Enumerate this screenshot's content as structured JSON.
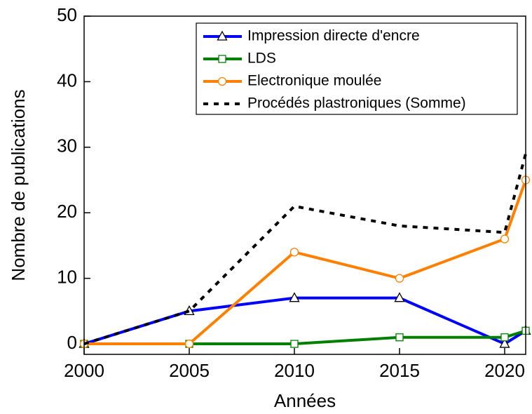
{
  "chart_data": {
    "type": "line",
    "x_label": "Années",
    "y_label": "Nombre de publications",
    "x": [
      2000,
      2005,
      2010,
      2015,
      2020,
      2021
    ],
    "series": [
      {
        "name": "Impression directe d'encre",
        "color": "#0000ff",
        "marker": "triangle",
        "values": [
          0,
          5,
          7,
          7,
          0,
          2
        ]
      },
      {
        "name": "LDS",
        "color": "#008000",
        "marker": "square",
        "values": [
          0,
          0,
          0,
          1,
          1,
          2
        ]
      },
      {
        "name": "Electronique moulée",
        "color": "#ff8000",
        "marker": "circle",
        "values": [
          0,
          0,
          14,
          10,
          16,
          25
        ]
      },
      {
        "name": "Procédés plastroniques (Somme)",
        "color": "#000000",
        "dash": true,
        "values": [
          0,
          5,
          21,
          18,
          17,
          29
        ]
      }
    ],
    "xlim": [
      2000,
      2021
    ],
    "xticks": [
      2000,
      2005,
      2010,
      2015,
      2020
    ],
    "ylim": [
      -1.6,
      50
    ],
    "yticks": [
      0,
      10,
      20,
      30,
      40,
      50
    ],
    "legend": "upper right"
  }
}
